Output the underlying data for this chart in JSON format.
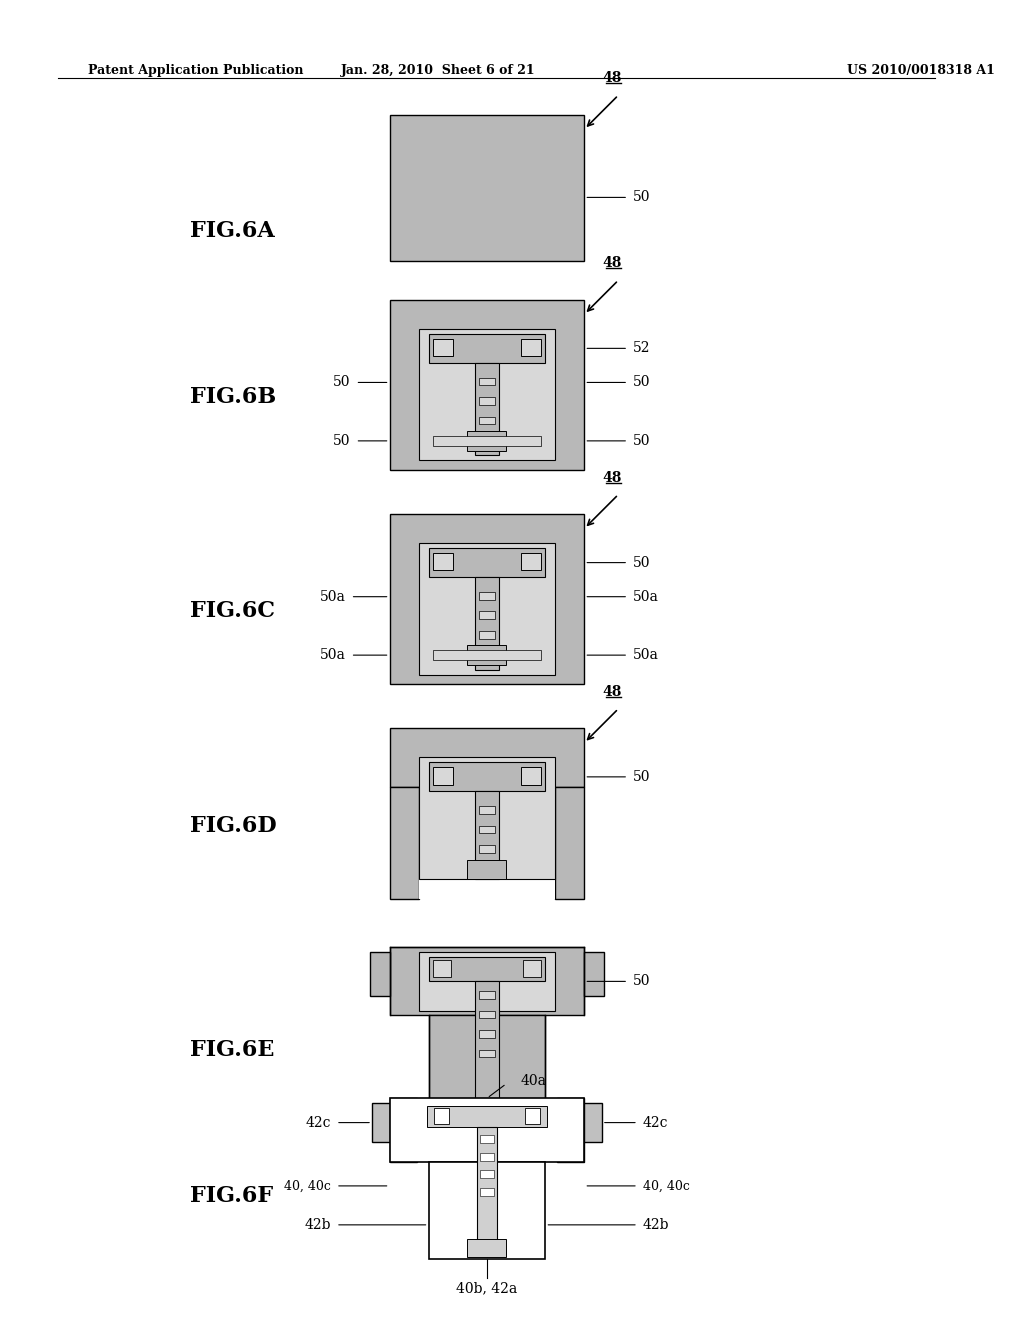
{
  "title_left": "Patent Application Publication",
  "title_mid": "Jan. 28, 2010  Sheet 6 of 21",
  "title_right": "US 2010/0018318 A1",
  "bg_color": "#ffffff",
  "gray_light": "#c8c8c8",
  "gray_dark": "#a0a0a0",
  "gray_medium": "#b8b8b8",
  "black": "#000000",
  "white": "#ffffff",
  "figs": [
    "FIG.6A",
    "FIG.6B",
    "FIG.6C",
    "FIG.6D",
    "FIG.6E",
    "FIG.6F"
  ]
}
